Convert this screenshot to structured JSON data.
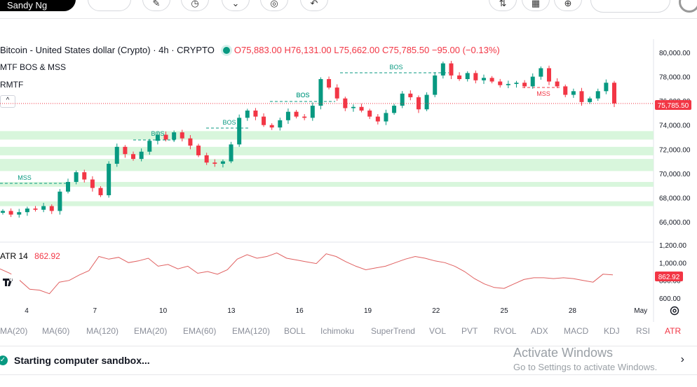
{
  "toolbar": {
    "user_label": "Sandy Ng"
  },
  "chart": {
    "title": "Bitcoin - United States dollar (Crypto) · 4h · CRYPTO",
    "open": "O75,883.00",
    "high": "H76,131.00",
    "low": "L75,662.00",
    "close": "C75,785.50",
    "change": "−95.00 (−0.13%)",
    "indicator1": "MTF BOS & MSS",
    "indicator2": "RMTF",
    "collapse_glyph": "^",
    "price_label": "75,785.50",
    "atr_name": "ATR 14",
    "atr_value": "862.92",
    "atr_label": "862.92",
    "colors": {
      "up": "#089981",
      "down": "#f23645",
      "zone": "#d8f6dc",
      "atr": "#e06060"
    }
  },
  "chart_data": {
    "type": "candlestick",
    "price_axis_ticks": [
      "80,000.00",
      "78,000.00",
      "76,000.00",
      "74,000.00",
      "72,000.00",
      "70,000.00",
      "68,000.00",
      "66,000.00"
    ],
    "atr_axis_ticks": [
      "1,200.00",
      "1,000.00",
      "800.00",
      "600.00"
    ],
    "x_ticks": [
      "4",
      "7",
      "10",
      "13",
      "16",
      "19",
      "22",
      "25",
      "28",
      "May"
    ],
    "annotations": [
      "MSS",
      "BOS",
      "BOS",
      "BOS",
      "BOS",
      "BOS",
      "MSS"
    ],
    "last_price": 75785.5,
    "atr_last": 862.92,
    "close_path": [
      66900,
      66600,
      66800,
      67100,
      67000,
      67300,
      66900,
      68500,
      69300,
      70100,
      69500,
      68800,
      68200,
      70800,
      72200,
      71600,
      71200,
      71800,
      72700,
      73200,
      72800,
      73400,
      72900,
      72300,
      71500,
      70900,
      70800,
      71000,
      72400,
      74600,
      75200,
      74700,
      74000,
      73800,
      74400,
      75100,
      74700,
      74600,
      75600,
      77800,
      77100,
      76200,
      75400,
      75500,
      75200,
      74700,
      74300,
      75000,
      75600,
      76600,
      76300,
      75300,
      76500,
      78100,
      79100,
      78100,
      77800,
      78300,
      77700,
      77900,
      77600,
      77300,
      77400,
      77500,
      77200,
      78000,
      78700,
      77600,
      77200,
      76500,
      76800,
      75900,
      76200,
      76800,
      77500,
      75785.5
    ],
    "atr_path": [
      930,
      880,
      800,
      700,
      690,
      650,
      780,
      800,
      860,
      910,
      1070,
      1040,
      1060,
      1000,
      1020,
      1050,
      960,
      980,
      930,
      960,
      880,
      900,
      870,
      920,
      1040,
      1090,
      1050,
      1070,
      1110,
      1050,
      1030,
      1010,
      990,
      1100,
      1070,
      1010,
      960,
      920,
      940,
      960,
      1000,
      1040,
      1070,
      1050,
      1020,
      1000,
      960,
      900,
      820,
      760,
      720,
      710,
      760,
      810,
      830,
      830,
      820,
      830,
      820,
      800,
      780,
      870,
      862.92
    ]
  },
  "indicator_tabs": [
    "MA(20)",
    "MA(60)",
    "MA(120)",
    "EMA(20)",
    "EMA(60)",
    "EMA(120)",
    "BOLL",
    "Ichimoku",
    "SuperTrend",
    "VOL",
    "PVT",
    "RVOL",
    "ADX",
    "MACD",
    "KDJ",
    "RSI",
    "ATR"
  ],
  "active_tab": "ATR",
  "status": {
    "message": "Starting computer sandbox...",
    "chevron": "›"
  },
  "activation": {
    "line1": "Activate Windows",
    "line2": "Go to Settings to activate Windows."
  }
}
